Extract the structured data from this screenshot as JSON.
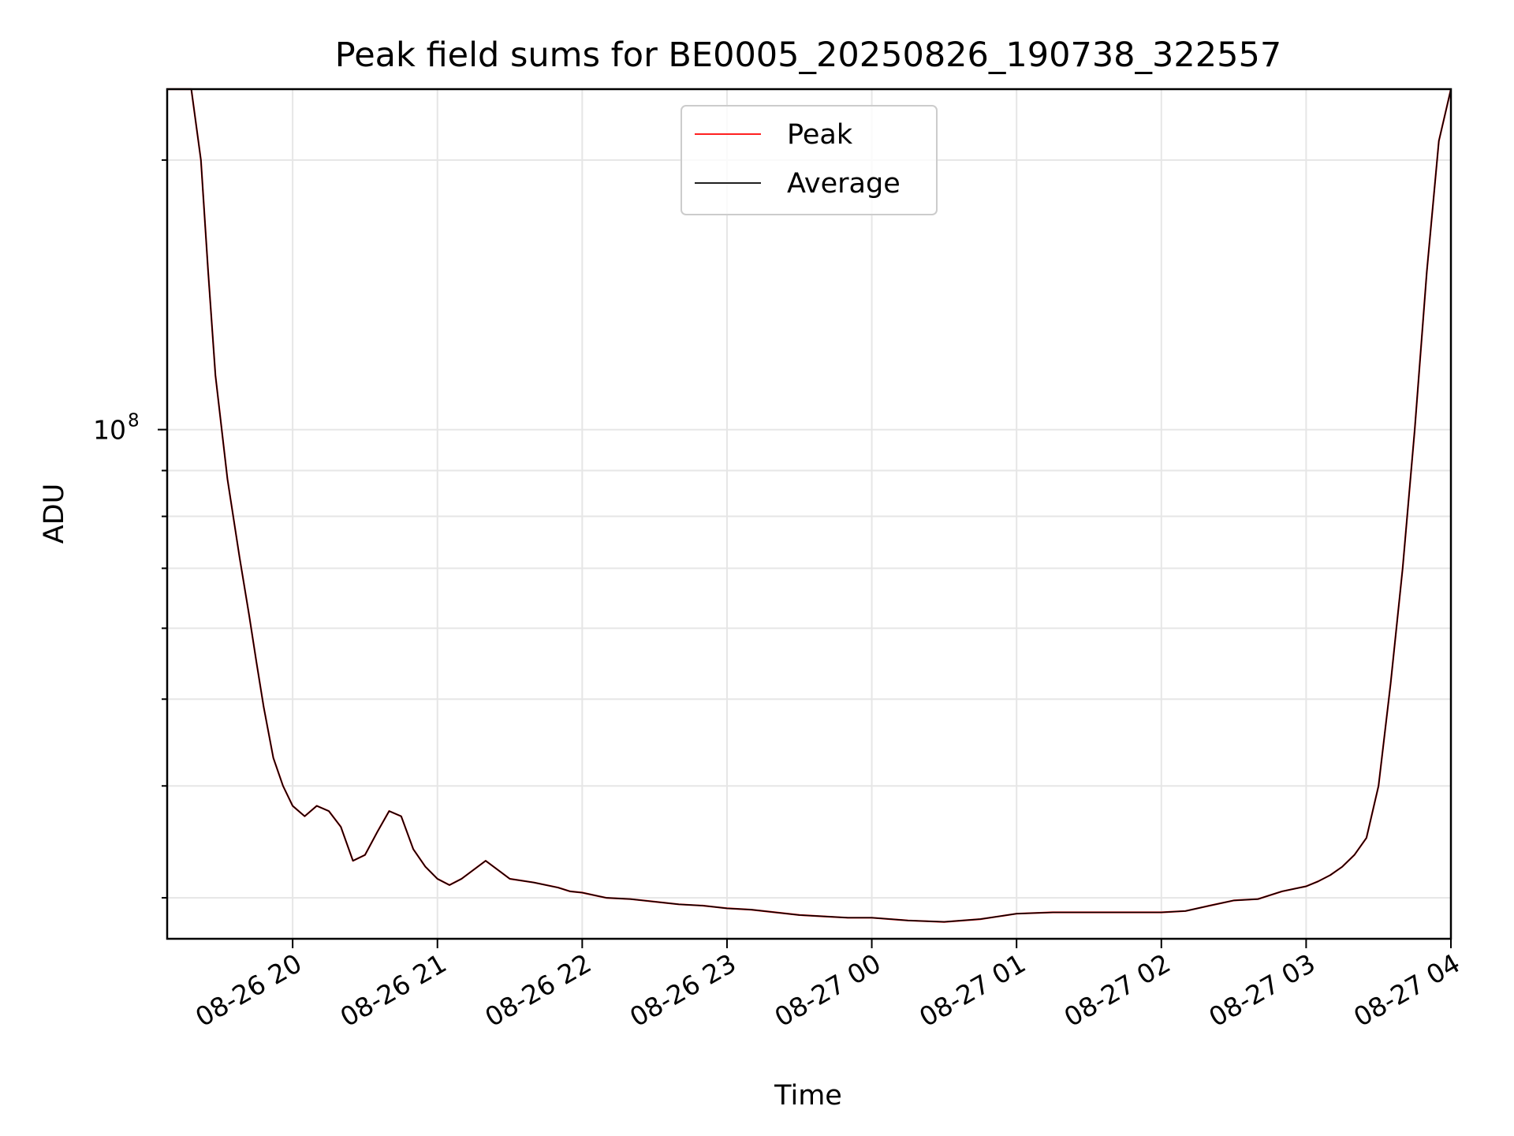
{
  "chart_data": {
    "type": "line",
    "title": "Peak field sums for BE0005_20250826_190738_322557",
    "xlabel": "Time",
    "ylabel": "ADU",
    "y_scale": "log",
    "ylim": [
      27000000,
      240000000
    ],
    "xlim": [
      "2025-08-26T19:08",
      "2025-08-27T04:00"
    ],
    "grid": true,
    "legend_position": "top-center",
    "x_tick_labels": [
      "08-26 20",
      "08-26 21",
      "08-26 22",
      "08-26 23",
      "08-27 00",
      "08-27 01",
      "08-27 02",
      "08-27 03",
      "08-27 04"
    ],
    "y_tick_labels": [
      {
        "value": 100000000,
        "label": "10^8"
      }
    ],
    "series": [
      {
        "name": "Peak",
        "color": "#ff0000",
        "x": [
          "2025-08-26T19:08",
          "2025-08-26T19:18",
          "2025-08-26T19:22",
          "2025-08-26T19:25",
          "2025-08-26T19:28",
          "2025-08-26T19:33",
          "2025-08-26T19:38",
          "2025-08-26T19:42",
          "2025-08-26T19:45",
          "2025-08-26T19:48",
          "2025-08-26T19:52",
          "2025-08-26T19:56",
          "2025-08-26T20:00",
          "2025-08-26T20:05",
          "2025-08-26T20:10",
          "2025-08-26T20:15",
          "2025-08-26T20:20",
          "2025-08-26T20:25",
          "2025-08-26T20:30",
          "2025-08-26T20:35",
          "2025-08-26T20:40",
          "2025-08-26T20:45",
          "2025-08-26T20:50",
          "2025-08-26T20:55",
          "2025-08-26T21:00",
          "2025-08-26T21:05",
          "2025-08-26T21:10",
          "2025-08-26T21:20",
          "2025-08-26T21:30",
          "2025-08-26T21:40",
          "2025-08-26T21:50",
          "2025-08-26T21:55",
          "2025-08-26T22:00",
          "2025-08-26T22:10",
          "2025-08-26T22:20",
          "2025-08-26T22:30",
          "2025-08-26T22:40",
          "2025-08-26T22:50",
          "2025-08-26T22:55",
          "2025-08-26T23:00",
          "2025-08-26T23:10",
          "2025-08-26T23:20",
          "2025-08-26T23:30",
          "2025-08-26T23:40",
          "2025-08-26T23:50",
          "2025-08-27T00:00",
          "2025-08-27T00:15",
          "2025-08-27T00:30",
          "2025-08-27T00:45",
          "2025-08-27T01:00",
          "2025-08-27T01:15",
          "2025-08-27T01:30",
          "2025-08-27T01:45",
          "2025-08-27T02:00",
          "2025-08-27T02:10",
          "2025-08-27T02:20",
          "2025-08-27T02:30",
          "2025-08-27T02:40",
          "2025-08-27T02:45",
          "2025-08-27T02:50",
          "2025-08-27T02:55",
          "2025-08-27T03:00",
          "2025-08-27T03:05",
          "2025-08-27T03:10",
          "2025-08-27T03:15",
          "2025-08-27T03:20",
          "2025-08-27T03:25",
          "2025-08-27T03:30",
          "2025-08-27T03:35",
          "2025-08-27T03:40",
          "2025-08-27T03:45",
          "2025-08-27T03:50",
          "2025-08-27T03:55",
          "2025-08-27T04:00"
        ],
        "values": [
          240000000,
          240000000,
          200000000,
          150000000,
          115000000,
          88000000,
          72000000,
          62000000,
          55000000,
          49000000,
          43000000,
          40000000,
          38000000,
          37000000,
          38000000,
          37500000,
          36000000,
          33000000,
          33500000,
          35500000,
          37500000,
          37000000,
          34000000,
          32500000,
          31500000,
          31000000,
          31500000,
          33000000,
          31500000,
          31200000,
          30800000,
          30500000,
          30400000,
          30000000,
          29900000,
          29700000,
          29500000,
          29400000,
          29300000,
          29200000,
          29100000,
          28900000,
          28700000,
          28600000,
          28500000,
          28500000,
          28300000,
          28200000,
          28400000,
          28800000,
          28900000,
          28900000,
          28900000,
          28900000,
          29000000,
          29400000,
          29800000,
          29900000,
          30200000,
          30500000,
          30700000,
          30900000,
          31300000,
          31800000,
          32500000,
          33500000,
          35000000,
          40000000,
          52000000,
          70000000,
          100000000,
          150000000,
          210000000,
          240000000
        ]
      },
      {
        "name": "Average",
        "color": "#000000",
        "x": [
          "2025-08-26T19:08",
          "2025-08-26T19:18",
          "2025-08-26T19:22",
          "2025-08-26T19:25",
          "2025-08-26T19:28",
          "2025-08-26T19:33",
          "2025-08-26T19:38",
          "2025-08-26T19:42",
          "2025-08-26T19:45",
          "2025-08-26T19:48",
          "2025-08-26T19:52",
          "2025-08-26T19:56",
          "2025-08-26T20:00",
          "2025-08-26T20:05",
          "2025-08-26T20:10",
          "2025-08-26T20:15",
          "2025-08-26T20:20",
          "2025-08-26T20:25",
          "2025-08-26T20:30",
          "2025-08-26T20:35",
          "2025-08-26T20:40",
          "2025-08-26T20:45",
          "2025-08-26T20:50",
          "2025-08-26T20:55",
          "2025-08-26T21:00",
          "2025-08-26T21:05",
          "2025-08-26T21:10",
          "2025-08-26T21:20",
          "2025-08-26T21:30",
          "2025-08-26T21:40",
          "2025-08-26T21:50",
          "2025-08-26T21:55",
          "2025-08-26T22:00",
          "2025-08-26T22:10",
          "2025-08-26T22:20",
          "2025-08-26T22:30",
          "2025-08-26T22:40",
          "2025-08-26T22:50",
          "2025-08-26T22:55",
          "2025-08-26T23:00",
          "2025-08-26T23:10",
          "2025-08-26T23:20",
          "2025-08-26T23:30",
          "2025-08-26T23:40",
          "2025-08-26T23:50",
          "2025-08-27T00:00",
          "2025-08-27T00:15",
          "2025-08-27T00:30",
          "2025-08-27T00:45",
          "2025-08-27T01:00",
          "2025-08-27T01:15",
          "2025-08-27T01:30",
          "2025-08-27T01:45",
          "2025-08-27T02:00",
          "2025-08-27T02:10",
          "2025-08-27T02:20",
          "2025-08-27T02:30",
          "2025-08-27T02:40",
          "2025-08-27T02:45",
          "2025-08-27T02:50",
          "2025-08-27T02:55",
          "2025-08-27T03:00",
          "2025-08-27T03:05",
          "2025-08-27T03:10",
          "2025-08-27T03:15",
          "2025-08-27T03:20",
          "2025-08-27T03:25",
          "2025-08-27T03:30",
          "2025-08-27T03:35",
          "2025-08-27T03:40",
          "2025-08-27T03:45",
          "2025-08-27T03:50",
          "2025-08-27T03:55",
          "2025-08-27T04:00"
        ],
        "values": [
          240000000,
          240000000,
          200000000,
          150000000,
          115000000,
          88000000,
          72000000,
          62000000,
          55000000,
          49000000,
          43000000,
          40000000,
          38000000,
          37000000,
          38000000,
          37500000,
          36000000,
          33000000,
          33500000,
          35500000,
          37500000,
          37000000,
          34000000,
          32500000,
          31500000,
          31000000,
          31500000,
          33000000,
          31500000,
          31200000,
          30800000,
          30500000,
          30400000,
          30000000,
          29900000,
          29700000,
          29500000,
          29400000,
          29300000,
          29200000,
          29100000,
          28900000,
          28700000,
          28600000,
          28500000,
          28500000,
          28300000,
          28200000,
          28400000,
          28800000,
          28900000,
          28900000,
          28900000,
          28900000,
          29000000,
          29400000,
          29800000,
          29900000,
          30200000,
          30500000,
          30700000,
          30900000,
          31300000,
          31800000,
          32500000,
          33500000,
          35000000,
          40000000,
          52000000,
          70000000,
          100000000,
          150000000,
          210000000,
          240000000
        ]
      }
    ]
  }
}
